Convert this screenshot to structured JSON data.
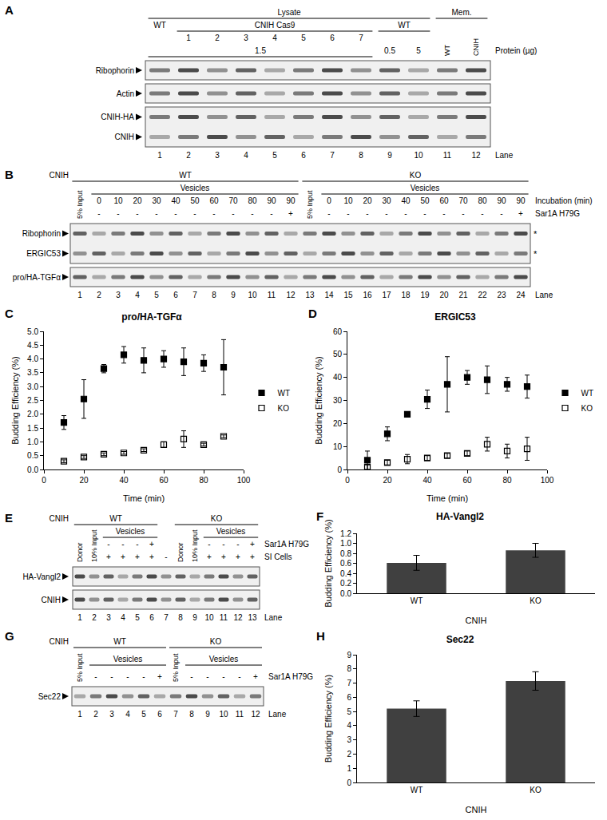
{
  "panel_letters": [
    "A",
    "B",
    "C",
    "D",
    "E",
    "F",
    "G",
    "H"
  ],
  "blots": [
    {
      "lanes": [
        1,
        2,
        3,
        4,
        5,
        6,
        7,
        8,
        9,
        10,
        11,
        12
      ],
      "header_rows": [
        {
          "spans": [
            {
              "text": "Lysate",
              "lanes": [
                1,
                10
              ]
            },
            {
              "text": "Mem.",
              "lanes": [
                11,
                12
              ]
            }
          ]
        },
        {
          "spans": [
            {
              "text": "WT",
              "lanes": [
                1,
                1
              ]
            },
            {
              "text": "CNIH Cas9",
              "lanes": [
                2,
                8
              ]
            },
            {
              "text": "WT",
              "lanes": [
                9,
                10
              ]
            }
          ]
        },
        {
          "per_lane": [
            null,
            1,
            2,
            3,
            4,
            5,
            6,
            7,
            null,
            null,
            null,
            null
          ]
        },
        {
          "right": "Protein (µg)",
          "spans": [
            {
              "text": "1.5",
              "lanes": [
                1,
                8
              ]
            },
            {
              "text": "0.5",
              "lanes": [
                9,
                9
              ]
            },
            {
              "text": "5",
              "lanes": [
                10,
                10
              ]
            }
          ]
        }
      ],
      "vertical": [
        {
          "text": "WT",
          "lane": 11
        },
        {
          "text": "CNIH",
          "lane": 12
        }
      ],
      "rows": [
        {
          "labels": [
            "Ribophorin"
          ]
        },
        {
          "labels": [
            "Actin"
          ]
        },
        {
          "labels": [
            "CNIH-HA",
            "CNIH"
          ]
        }
      ],
      "lane_label": "Lane"
    },
    {
      "lanes": [
        1,
        2,
        3,
        4,
        5,
        6,
        7,
        8,
        9,
        10,
        11,
        12,
        13,
        14,
        15,
        16,
        17,
        18,
        19,
        20,
        21,
        22,
        23,
        24
      ],
      "header_rows": [
        {
          "left": "CNIH",
          "spans": [
            {
              "text": "WT",
              "lanes": [
                1,
                12
              ]
            },
            {
              "text": "KO",
              "lanes": [
                13,
                24
              ]
            }
          ]
        },
        {
          "spans": [
            {
              "text": "Vesicles",
              "lanes": [
                2,
                12
              ]
            },
            {
              "text": "Vesicles",
              "lanes": [
                14,
                24
              ]
            }
          ]
        },
        {
          "right": "Incubation (min)",
          "per_lane": [
            null,
            0,
            10,
            20,
            30,
            40,
            50,
            60,
            70,
            80,
            90,
            90,
            null,
            0,
            10,
            20,
            30,
            40,
            50,
            60,
            70,
            80,
            90,
            90
          ]
        },
        {
          "right": "Sar1A H79G",
          "per_lane": [
            null,
            "-",
            "-",
            "-",
            "-",
            "-",
            "-",
            "-",
            "-",
            "-",
            "-",
            "+",
            null,
            "-",
            "-",
            "-",
            "-",
            "-",
            "-",
            "-",
            "-",
            "-",
            "-",
            "+"
          ]
        }
      ],
      "vertical": [
        {
          "text": "5% Input",
          "lane": 1
        },
        {
          "text": "5% Input",
          "lane": 13
        }
      ],
      "rows": [
        {
          "labels": [
            "Ribophorin",
            "ERGIC53"
          ],
          "marks": [
            "*",
            "*"
          ]
        },
        {
          "labels": [
            "pro/HA-TGFα"
          ]
        }
      ],
      "lane_label": "Lane"
    },
    {
      "lanes": [
        1,
        2,
        3,
        4,
        5,
        6,
        7,
        8,
        9,
        10,
        11,
        12,
        13
      ],
      "header_rows": [
        {
          "left": "CNIH",
          "spans": [
            {
              "text": "WT",
              "lanes": [
                1,
                6
              ]
            },
            {
              "text": "KO",
              "lanes": [
                8,
                13
              ]
            }
          ]
        },
        {
          "spans": [
            {
              "text": "Vesicles",
              "lanes": [
                3,
                6
              ]
            },
            {
              "text": "Vesicles",
              "lanes": [
                10,
                13
              ]
            }
          ]
        },
        {
          "right": "Sar1A H79G",
          "per_lane": [
            null,
            null,
            "-",
            "-",
            "-",
            "+",
            null,
            null,
            null,
            "-",
            "-",
            "-",
            "+"
          ]
        },
        {
          "right": "SI Cells",
          "per_lane": [
            null,
            null,
            "+",
            "+",
            "+",
            "+",
            "-",
            null,
            null,
            "+",
            "+",
            "+",
            "+"
          ]
        }
      ],
      "vertical": [
        {
          "text": "Donor",
          "lane": 1
        },
        {
          "text": "10% Input",
          "lane": 2
        },
        {
          "text": "Donor",
          "lane": 8
        },
        {
          "text": "10% Input",
          "lane": 9
        }
      ],
      "rows": [
        {
          "labels": [
            "HA-Vangl2"
          ]
        },
        {
          "labels": [
            "CNIH"
          ]
        }
      ],
      "lane_label": "Lane"
    },
    {
      "lanes": [
        1,
        2,
        3,
        4,
        5,
        6,
        7,
        8,
        9,
        10,
        11,
        12
      ],
      "header_rows": [
        {
          "left": "CNIH",
          "spans": [
            {
              "text": "WT",
              "lanes": [
                1,
                6
              ]
            },
            {
              "text": "KO",
              "lanes": [
                7,
                12
              ]
            }
          ]
        },
        {
          "spans": [
            {
              "text": "Vesicles",
              "lanes": [
                2,
                6
              ]
            },
            {
              "text": "Vesicles",
              "lanes": [
                8,
                12
              ]
            }
          ]
        },
        {
          "right": "Sar1A H79G",
          "per_lane": [
            null,
            "-",
            "-",
            "-",
            "-",
            "+",
            null,
            "-",
            "-",
            "-",
            "-",
            "+"
          ]
        }
      ],
      "vertical": [
        {
          "text": "5% Input",
          "lane": 1
        },
        {
          "text": "5% Input",
          "lane": 7
        }
      ],
      "rows": [
        {
          "labels": [
            "Sec22"
          ]
        }
      ],
      "lane_label": "Lane"
    }
  ],
  "chart_data": [
    {
      "type": "scatter",
      "title": "pro/HA-TGFα",
      "xlabel": "Time (min)",
      "ylabel": "Budding Efficiency (%)",
      "x": [
        10,
        20,
        30,
        40,
        50,
        60,
        70,
        80,
        90
      ],
      "series": [
        {
          "name": "WT",
          "color": "#000000",
          "marker": "square",
          "values": [
            1.7,
            2.55,
            3.65,
            4.15,
            3.95,
            4.0,
            3.9,
            3.85,
            3.7
          ],
          "errors": [
            0.25,
            0.7,
            0.15,
            0.3,
            0.45,
            0.3,
            0.5,
            0.3,
            1.0
          ]
        },
        {
          "name": "KO",
          "color": "#000000",
          "marker": "square-open",
          "values": [
            0.3,
            0.45,
            0.55,
            0.6,
            0.7,
            0.9,
            1.1,
            0.9,
            1.2
          ],
          "errors": [
            0.05,
            0.05,
            0.05,
            0.05,
            0.05,
            0.1,
            0.3,
            0.05,
            0.05
          ]
        }
      ],
      "xlim": [
        0,
        100
      ],
      "xticks": [
        0,
        20,
        40,
        60,
        80,
        100
      ],
      "ylim": [
        0,
        5
      ],
      "yticks": [
        {
          "value": 0,
          "label": "0.0"
        },
        {
          "value": 0.5,
          "label": "0.5"
        },
        {
          "value": 1,
          "label": "1.0"
        },
        {
          "value": 1.5,
          "label": "1.5"
        },
        {
          "value": 2,
          "label": "2.0"
        },
        {
          "value": 2.5,
          "label": "2.5"
        },
        {
          "value": 3,
          "label": "3.0"
        },
        {
          "value": 3.5,
          "label": "3.5"
        },
        {
          "value": 4,
          "label": "4.0"
        },
        {
          "value": 4.5,
          "label": "4.5"
        },
        {
          "value": 5,
          "label": "5.0"
        }
      ],
      "legend": "right",
      "grid": false
    },
    {
      "type": "scatter",
      "title": "ERGIC53",
      "xlabel": "Time (min)",
      "ylabel": "Budding Efficiency (%)",
      "x": [
        10,
        20,
        30,
        40,
        50,
        60,
        70,
        80,
        90
      ],
      "series": [
        {
          "name": "WT",
          "color": "#000000",
          "marker": "square",
          "values": [
            4,
            15.5,
            24,
            30.5,
            37,
            40,
            39,
            37,
            36
          ],
          "errors": [
            4,
            3,
            1,
            4,
            12,
            3,
            6,
            3,
            5
          ]
        },
        {
          "name": "KO",
          "color": "#000000",
          "marker": "square-open",
          "values": [
            1,
            3,
            4.5,
            5,
            6,
            7,
            11,
            8,
            9
          ],
          "errors": [
            1,
            1,
            2,
            1,
            1,
            1,
            3,
            3,
            5
          ]
        }
      ],
      "xlim": [
        0,
        100
      ],
      "xticks": [
        0,
        20,
        40,
        60,
        80,
        100
      ],
      "ylim": [
        0,
        60
      ],
      "yticks": [
        0,
        10,
        20,
        30,
        40,
        50,
        60
      ],
      "legend": "right",
      "grid": false
    },
    {
      "type": "bar",
      "title": "HA-Vangl2",
      "xlabel": "CNIH",
      "ylabel": "Budding Efficiency (%)",
      "categories": [
        "WT",
        "KO"
      ],
      "values": [
        0.61,
        0.86
      ],
      "errors": [
        0.15,
        0.14
      ],
      "color": "#404040",
      "ylim": [
        0,
        1.2
      ],
      "yticks": [
        {
          "value": 0,
          "label": "0.0"
        },
        {
          "value": 0.2,
          "label": "0.2"
        },
        {
          "value": 0.4,
          "label": "0.4"
        },
        {
          "value": 0.6,
          "label": "0.6"
        },
        {
          "value": 0.8,
          "label": "0.8"
        },
        {
          "value": 1,
          "label": "1.0"
        },
        {
          "value": 1.2,
          "label": "1.2"
        }
      ],
      "grid": false
    },
    {
      "type": "bar",
      "title": "Sec22",
      "xlabel": "CNIH",
      "ylabel": "Budding Efficiency (%)",
      "categories": [
        "WT",
        "KO"
      ],
      "values": [
        5.2,
        7.15
      ],
      "errors": [
        0.55,
        0.65
      ],
      "color": "#404040",
      "ylim": [
        0,
        9
      ],
      "yticks": [
        0,
        1,
        2,
        3,
        4,
        5,
        6,
        7,
        8,
        9
      ],
      "grid": false
    }
  ]
}
